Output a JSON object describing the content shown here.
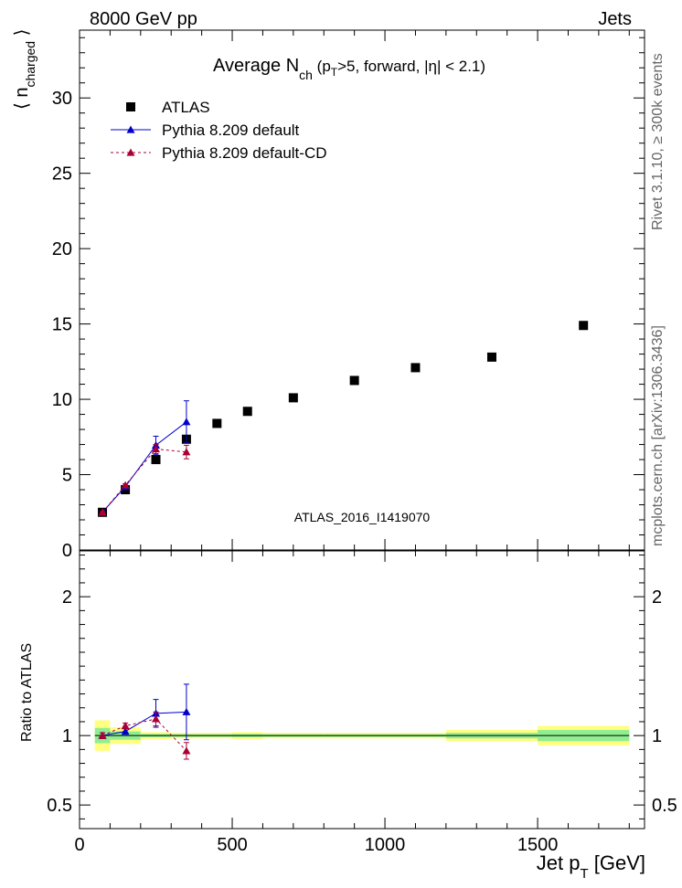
{
  "header": {
    "left": "8000 GeV pp",
    "right": "Jets"
  },
  "side_labels": {
    "rivet": "Rivet 3.1.10, ≥ 300k events",
    "mcplots": "mcplots.cern.ch [arXiv:1306.3436]"
  },
  "chart_data": [
    {
      "type": "scatter",
      "panel": "main",
      "title": "Average N_ch (p_T>5, forward, |η| < 2.1)",
      "ylabel": "⟨ n_charged ⟩",
      "watermark": "ATLAS_2016_I1419070",
      "xlim": [
        0,
        1850
      ],
      "ylim": [
        0,
        34.5
      ],
      "yticks": [
        0,
        5,
        10,
        15,
        20,
        25,
        30
      ],
      "yticklabels": [
        "0",
        "5",
        "10",
        "15",
        "20",
        "25",
        "30"
      ],
      "legend_position": "top-left",
      "series": [
        {
          "name": "ATLAS",
          "color": "#000000",
          "marker": "square",
          "x": [
            75,
            150,
            250,
            350,
            450,
            550,
            700,
            900,
            1100,
            1350,
            1650
          ],
          "y": [
            2.5,
            4.0,
            6.0,
            7.35,
            8.4,
            9.2,
            10.1,
            11.25,
            12.1,
            12.8,
            14.9
          ]
        },
        {
          "name": "Pythia 8.209 default",
          "color": "#0000cc",
          "marker": "triangle",
          "line": "solid",
          "x": [
            75,
            150,
            250,
            350
          ],
          "y": [
            2.5,
            4.2,
            6.95,
            8.5
          ],
          "yerr": [
            0.05,
            0.1,
            0.6,
            1.4
          ]
        },
        {
          "name": "Pythia 8.209 default-CD",
          "color": "#aa0033",
          "marker": "triangle",
          "line": "dotted",
          "x": [
            75,
            150,
            250,
            350
          ],
          "y": [
            2.5,
            4.3,
            6.7,
            6.5
          ],
          "yerr": [
            0.05,
            0.1,
            0.3,
            0.45
          ]
        }
      ]
    },
    {
      "type": "scatter",
      "panel": "ratio",
      "ylabel": "Ratio to ATLAS",
      "xlabel": "Jet p_T [GeV]",
      "xlim": [
        0,
        1850
      ],
      "ylim": [
        0.33,
        2.33
      ],
      "xticks": [
        0,
        500,
        1000,
        1500
      ],
      "xticklabels": [
        "0",
        "500",
        "1000",
        "1500"
      ],
      "yticks": [
        0.5,
        1,
        2
      ],
      "yticklabels": [
        "0.5",
        "1",
        "2"
      ],
      "bands": {
        "edges": [
          50,
          100,
          200,
          300,
          400,
          500,
          600,
          800,
          1000,
          1200,
          1500,
          1800
        ],
        "stat_syst_outer": [
          0.11,
          0.06,
          0.025,
          0.02,
          0.02,
          0.025,
          0.02,
          0.02,
          0.02,
          0.04,
          0.07
        ],
        "stat_inner": [
          0.055,
          0.03,
          0.012,
          0.01,
          0.01,
          0.012,
          0.01,
          0.01,
          0.01,
          0.02,
          0.04
        ],
        "outer_color": "#ffff80",
        "inner_color": "#90ee90"
      },
      "series": [
        {
          "name": "Pythia 8.209 default",
          "color": "#0000cc",
          "marker": "triangle",
          "line": "solid",
          "x": [
            75,
            150,
            250,
            350
          ],
          "y": [
            1.0,
            1.03,
            1.16,
            1.17
          ],
          "yerr": [
            0.02,
            0.02,
            0.1,
            0.2
          ]
        },
        {
          "name": "Pythia 8.209 default-CD",
          "color": "#aa0033",
          "marker": "triangle",
          "line": "dotted",
          "x": [
            75,
            150,
            250,
            350
          ],
          "y": [
            1.0,
            1.07,
            1.12,
            0.89
          ],
          "yerr": [
            0.02,
            0.02,
            0.05,
            0.06
          ]
        }
      ]
    }
  ]
}
